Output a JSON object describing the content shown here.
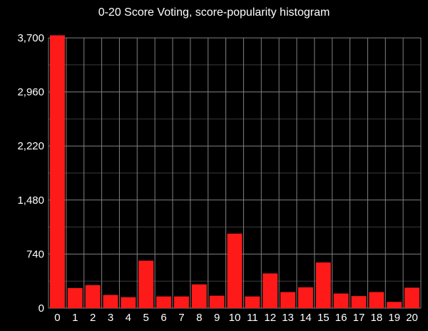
{
  "chart_data": {
    "type": "bar",
    "title": "0-20 Score Voting, score-popularity histogram",
    "xlabel": "",
    "ylabel": "",
    "categories": [
      "0",
      "1",
      "2",
      "3",
      "4",
      "5",
      "6",
      "7",
      "8",
      "9",
      "10",
      "11",
      "12",
      "13",
      "14",
      "15",
      "16",
      "17",
      "18",
      "19",
      "20"
    ],
    "values": [
      3735,
      275,
      315,
      180,
      150,
      650,
      160,
      160,
      325,
      170,
      1020,
      160,
      475,
      220,
      285,
      625,
      200,
      165,
      220,
      85,
      280
    ],
    "ylim": [
      0,
      3700
    ],
    "yticks": [
      0,
      740,
      1480,
      2220,
      2960,
      3700
    ],
    "ytick_labels": [
      "0",
      "740",
      "1,480",
      "2,220",
      "2,960",
      "3,700"
    ],
    "grid": true,
    "colors": {
      "background": "#000000",
      "bar": "#ff1a1a",
      "grid_major": "#808080",
      "grid_minor": "#3a3a3a",
      "text": "#ffffff"
    }
  }
}
